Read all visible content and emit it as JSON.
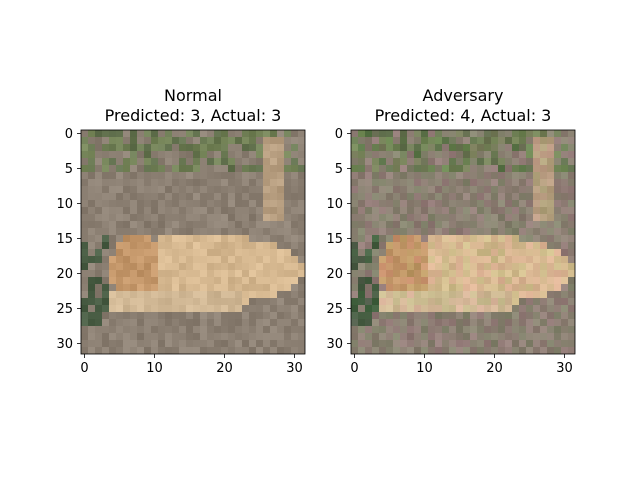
{
  "chart_data": [
    {
      "type": "heatmap",
      "title_line1": "Normal",
      "title_line2": "Predicted: 3, Actual: 3",
      "xlim": [
        -0.5,
        31.5
      ],
      "ylim": [
        31.5,
        -0.5
      ],
      "xticks": [
        0,
        10,
        20,
        30
      ],
      "yticks": [
        0,
        5,
        10,
        15,
        20,
        25,
        30
      ],
      "grid": false,
      "image": "32x32 RGB photo of a tan dog lying on grey ground with dark green foliage at top"
    },
    {
      "type": "heatmap",
      "title_line1": "Adversary",
      "title_line2": "Predicted: 4, Actual: 3",
      "xlim": [
        -0.5,
        31.5
      ],
      "ylim": [
        31.5,
        -0.5
      ],
      "xticks": [
        0,
        10,
        20,
        30
      ],
      "yticks": [
        0,
        5,
        10,
        15,
        20,
        25,
        30
      ],
      "grid": false,
      "image": "same 32x32 photo with subtle adversarial perturbation"
    }
  ]
}
